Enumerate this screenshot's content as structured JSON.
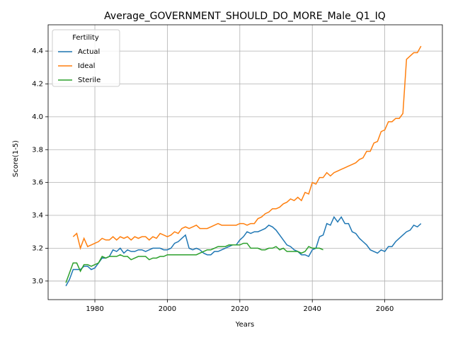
{
  "chart_data": {
    "type": "line",
    "title": "Average_GOVERNMENT_SHOULD_DO_MORE_Male_Q1_IQ",
    "xlabel": "Years",
    "ylabel": "Score(1-5)",
    "legend_title": "Fertility",
    "legend": "upper left",
    "grid": true,
    "xlim": [
      1967.1,
      2075.9
    ],
    "ylim": [
      2.887,
      4.56
    ],
    "xticks": [
      1980,
      2000,
      2020,
      2040,
      2060
    ],
    "yticks": [
      {
        "value": 3.0,
        "label": "3.0"
      },
      3.2,
      3.4,
      3.6,
      3.8,
      {
        "value": 4.0,
        "label": "4.0"
      },
      4.2,
      4.4
    ],
    "x": [
      1972,
      1973,
      1974,
      1975,
      1976,
      1977,
      1978,
      1979,
      1980,
      1981,
      1982,
      1983,
      1984,
      1985,
      1986,
      1987,
      1988,
      1989,
      1990,
      1991,
      1992,
      1993,
      1994,
      1995,
      1996,
      1997,
      1998,
      1999,
      2000,
      2001,
      2002,
      2003,
      2004,
      2005,
      2006,
      2007,
      2008,
      2009,
      2010,
      2011,
      2012,
      2013,
      2014,
      2015,
      2016,
      2017,
      2018,
      2019,
      2020,
      2021,
      2022,
      2023,
      2024,
      2025,
      2026,
      2027,
      2028,
      2029,
      2030,
      2031,
      2032,
      2033,
      2034,
      2035,
      2036,
      2037,
      2038,
      2039,
      2040,
      2041,
      2042,
      2043,
      2044,
      2045,
      2046,
      2047,
      2048,
      2049,
      2050,
      2051,
      2052,
      2053,
      2054,
      2055,
      2056,
      2057,
      2058,
      2059,
      2060,
      2061,
      2062,
      2063,
      2064,
      2065,
      2066,
      2067,
      2068,
      2069,
      2070
    ],
    "series": [
      {
        "name": "Actual",
        "color": "#1f77b4",
        "values": [
          2.97,
          3.01,
          3.07,
          3.07,
          3.07,
          3.09,
          3.09,
          3.07,
          3.08,
          3.11,
          3.14,
          3.14,
          3.15,
          3.19,
          3.18,
          3.2,
          3.17,
          3.19,
          3.18,
          3.18,
          3.19,
          3.19,
          3.18,
          3.19,
          3.2,
          3.2,
          3.2,
          3.19,
          3.19,
          3.2,
          3.23,
          3.24,
          3.26,
          3.28,
          3.2,
          3.19,
          3.2,
          3.19,
          3.17,
          3.16,
          3.16,
          3.18,
          3.18,
          3.19,
          3.2,
          3.21,
          3.22,
          3.22,
          3.25,
          3.27,
          3.3,
          3.29,
          3.3,
          3.3,
          3.31,
          3.32,
          3.34,
          3.33,
          3.31,
          3.28,
          3.25,
          3.22,
          3.21,
          3.19,
          3.18,
          3.16,
          3.16,
          3.15,
          3.19,
          3.2,
          3.27,
          3.28,
          3.35,
          3.34,
          3.39,
          3.36,
          3.39,
          3.35,
          3.35,
          3.3,
          3.29,
          3.26,
          3.24,
          3.22,
          3.19,
          3.18,
          3.17,
          3.19,
          3.18,
          3.21,
          3.21,
          3.24,
          3.26,
          3.28,
          3.3,
          3.31,
          3.34,
          3.33,
          3.35
        ]
      },
      {
        "name": "Ideal",
        "color": "#ff7f0e",
        "values": [
          null,
          null,
          3.27,
          3.29,
          3.2,
          3.26,
          3.21,
          3.22,
          3.23,
          3.24,
          3.26,
          3.25,
          3.25,
          3.27,
          3.25,
          3.27,
          3.26,
          3.27,
          3.25,
          3.27,
          3.26,
          3.27,
          3.27,
          3.25,
          3.27,
          3.26,
          3.29,
          3.28,
          3.27,
          3.28,
          3.3,
          3.29,
          3.32,
          3.33,
          3.32,
          3.33,
          3.34,
          3.32,
          3.32,
          3.32,
          3.33,
          3.34,
          3.35,
          3.34,
          3.34,
          3.34,
          3.34,
          3.34,
          3.35,
          3.35,
          3.34,
          3.35,
          3.35,
          3.38,
          3.39,
          3.41,
          3.42,
          3.44,
          3.44,
          3.45,
          3.47,
          3.48,
          3.5,
          3.49,
          3.51,
          3.49,
          3.54,
          3.53,
          3.6,
          3.59,
          3.63,
          3.63,
          3.66,
          3.64,
          3.66,
          3.67,
          3.68,
          3.69,
          3.7,
          3.71,
          3.72,
          3.74,
          3.75,
          3.79,
          3.79,
          3.84,
          3.85,
          3.91,
          3.92,
          3.97,
          3.97,
          3.99,
          3.99,
          4.02,
          4.35,
          4.37,
          4.39,
          4.39,
          4.43
        ]
      },
      {
        "name": "Sterile",
        "color": "#2ca02c",
        "values": [
          2.99,
          3.05,
          3.11,
          3.11,
          3.06,
          3.1,
          3.1,
          3.09,
          3.1,
          3.11,
          3.15,
          3.14,
          3.15,
          3.15,
          3.15,
          3.16,
          3.15,
          3.15,
          3.13,
          3.14,
          3.15,
          3.15,
          3.15,
          3.13,
          3.14,
          3.14,
          3.15,
          3.15,
          3.16,
          3.16,
          3.16,
          3.16,
          3.16,
          3.16,
          3.16,
          3.16,
          3.16,
          3.17,
          3.18,
          3.19,
          3.19,
          3.2,
          3.21,
          3.21,
          3.21,
          3.22,
          3.22,
          3.22,
          3.22,
          3.23,
          3.23,
          3.2,
          3.2,
          3.2,
          3.19,
          3.19,
          3.2,
          3.2,
          3.21,
          3.19,
          3.2,
          3.18,
          3.18,
          3.18,
          3.18,
          3.17,
          3.18,
          3.21,
          3.2,
          3.2,
          3.2,
          3.19,
          null,
          null,
          null,
          null,
          null,
          null,
          null,
          null,
          null,
          null,
          null,
          null,
          null,
          null,
          null,
          null,
          null,
          null,
          null,
          null,
          null,
          null,
          null,
          null,
          null,
          null,
          null
        ]
      }
    ]
  }
}
